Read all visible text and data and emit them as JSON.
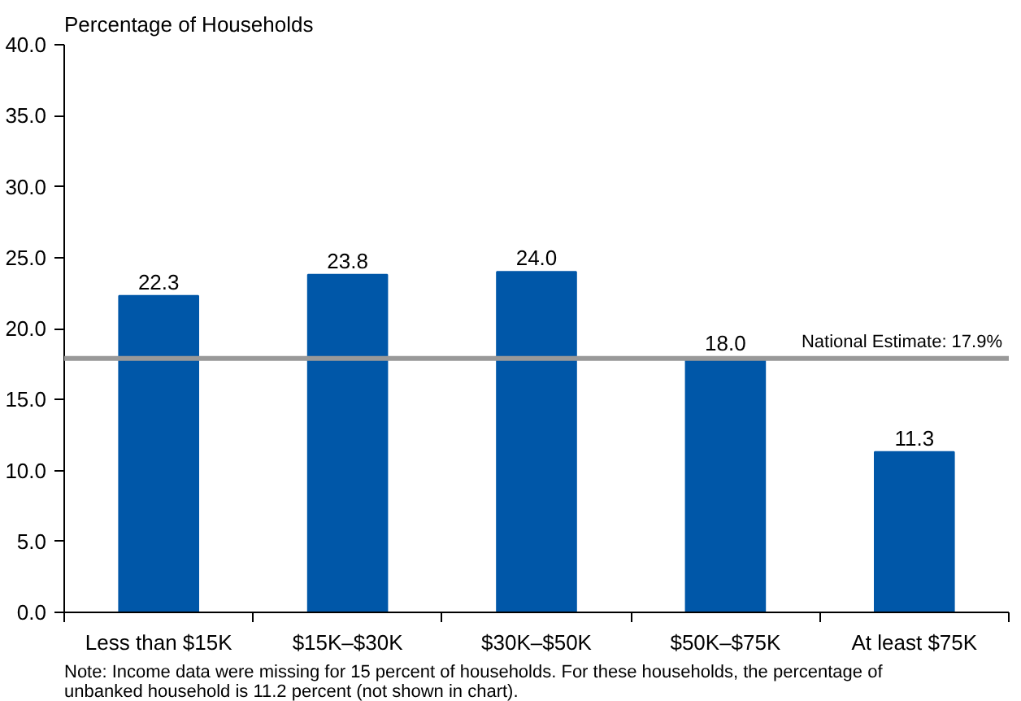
{
  "chart_data": {
    "type": "bar",
    "ylabel": "Percentage of Households",
    "categories": [
      "Less than $15K",
      "$15K–$30K",
      "$30K–$50K",
      "$50K–$75K",
      "At least $75K"
    ],
    "values": [
      22.3,
      23.8,
      24.0,
      18.0,
      11.3
    ],
    "color": "#0057a8",
    "value_labels": [
      "22.3",
      "23.8",
      "24.0",
      "18.0",
      "11.3"
    ],
    "ylim": [
      0,
      40
    ],
    "yticks": [
      {
        "value": 0,
        "label": "0.0"
      },
      {
        "value": 5,
        "label": "5.0"
      },
      {
        "value": 10,
        "label": "10.0"
      },
      {
        "value": 15,
        "label": "15.0"
      },
      {
        "value": 20,
        "label": "20.0"
      },
      {
        "value": 25,
        "label": "25.0"
      },
      {
        "value": 30,
        "label": "30.0"
      },
      {
        "value": 35,
        "label": "35.0"
      },
      {
        "value": 40,
        "label": "40.0"
      }
    ],
    "grid": false,
    "ref_lines": [
      {
        "axis": "y",
        "value": 17.9,
        "label": "National Estimate: 17.9%",
        "color": "#999999"
      }
    ],
    "annotations": [
      "Note: Income data were missing for 15 percent of households. For these households, the percentage of unbanked household is 11.2 percent (not shown in chart)."
    ]
  }
}
